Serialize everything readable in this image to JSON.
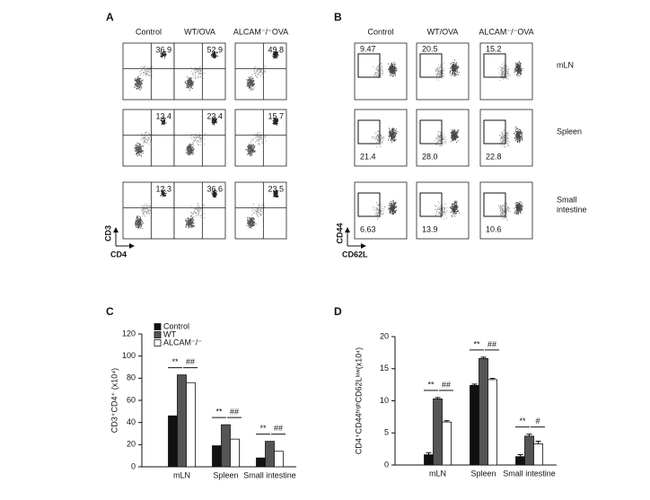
{
  "panels": {
    "A": {
      "label": "A",
      "columns": [
        "Control",
        "WT/OVA",
        "ALCAM⁻/⁻OVA"
      ],
      "values": [
        [
          "36.9",
          "52.9",
          "49.8"
        ],
        [
          "13.4",
          "23.4",
          "15.7"
        ],
        [
          "12.3",
          "36.6",
          "23.5"
        ]
      ],
      "y_label": "CD3",
      "x_label": "CD4"
    },
    "B": {
      "label": "B",
      "columns": [
        "Control",
        "WT/OVA",
        "ALCAM⁻/⁻OVA"
      ],
      "values": [
        [
          "9.47",
          "20.5",
          "15.2"
        ],
        [
          "21.4",
          "28.0",
          "22.8"
        ],
        [
          "6.63",
          "13.9",
          "10.6"
        ]
      ],
      "row_labels": [
        [
          "mLN"
        ],
        [
          "Spleen"
        ],
        [
          "Small",
          "intestine"
        ]
      ],
      "y_label": "CD44",
      "x_label": "CD62L"
    }
  },
  "chart_data": [
    {
      "type": "bar",
      "label": "C",
      "ylabel": "CD3⁺CD4⁺ (x10⁴)",
      "categories": [
        "mLN",
        "Spleen",
        "Small intestine"
      ],
      "series": [
        {
          "name": "Control",
          "color": "#111111",
          "values": [
            46,
            19,
            8
          ]
        },
        {
          "name": "WT",
          "color": "#555555",
          "values": [
            83,
            38,
            23
          ]
        },
        {
          "name": "ALCAM⁻/⁻",
          "color": "#ffffff",
          "values": [
            76,
            25,
            14
          ]
        }
      ],
      "ylim": [
        0,
        120
      ],
      "yticks": [
        0,
        20,
        40,
        60,
        80,
        100,
        120
      ],
      "legend": "top-left",
      "significance": [
        [
          "**",
          "##"
        ],
        [
          "**",
          "##"
        ],
        [
          "**",
          "##"
        ]
      ]
    },
    {
      "type": "bar",
      "label": "D",
      "ylabel": "CD4⁺CD44ʰⁱᵍʰCD62Lˡᵒʷ(x10⁴)",
      "categories": [
        "mLN",
        "Spleen",
        "Small intestine"
      ],
      "series": [
        {
          "name": "Control",
          "color": "#111111",
          "values": [
            1.6,
            12.4,
            1.3
          ],
          "errors": [
            0.3,
            0.2,
            0.3
          ]
        },
        {
          "name": "WT",
          "color": "#555555",
          "values": [
            10.3,
            16.6,
            4.5
          ],
          "errors": [
            0.2,
            0.2,
            0.3
          ]
        },
        {
          "name": "ALCAM⁻/⁻",
          "color": "#ffffff",
          "values": [
            6.7,
            13.3,
            3.3
          ],
          "errors": [
            0.2,
            0.2,
            0.4
          ]
        }
      ],
      "ylim": [
        0,
        20
      ],
      "yticks": [
        0,
        5,
        10,
        15,
        20
      ],
      "significance": [
        [
          "**",
          "##"
        ],
        [
          "**",
          "##"
        ],
        [
          "**",
          "#"
        ]
      ]
    }
  ]
}
